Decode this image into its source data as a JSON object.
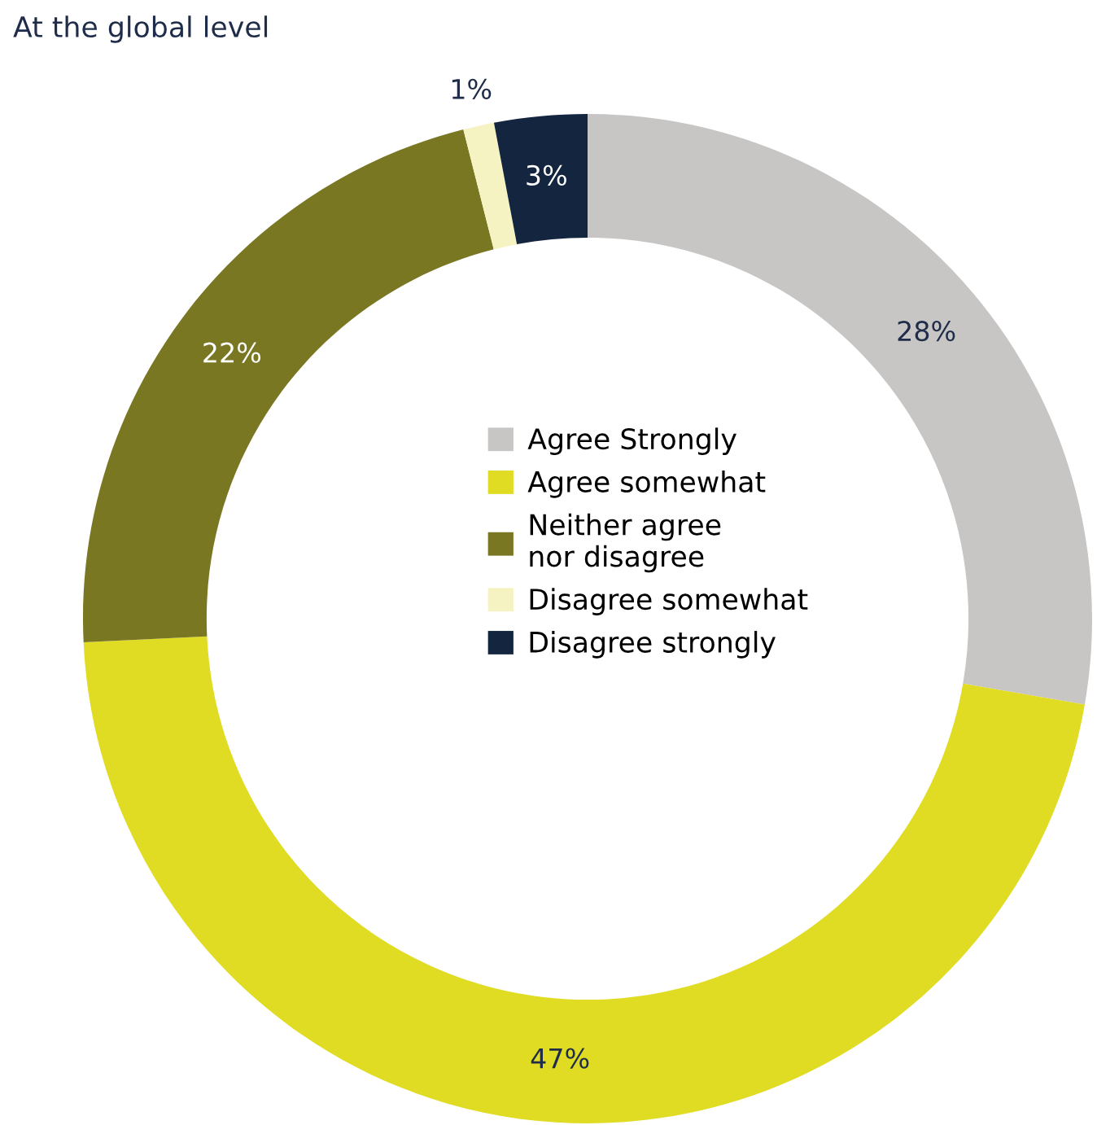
{
  "chart_data": {
    "type": "donut",
    "title": "At the global level",
    "categories": [
      "Agree Strongly",
      "Agree somewhat",
      "Neither agree\nnor disagree",
      "Disagree somewhat",
      "Disagree strongly"
    ],
    "values": [
      28,
      47,
      22,
      1,
      3
    ],
    "colors": [
      "#c8c6c5",
      "#e0dc24",
      "#7a7723",
      "#f6f3c2",
      "#14263f"
    ],
    "value_labels": [
      "28%",
      "47%",
      "22%",
      "1%",
      "3%"
    ],
    "legend": "center"
  }
}
